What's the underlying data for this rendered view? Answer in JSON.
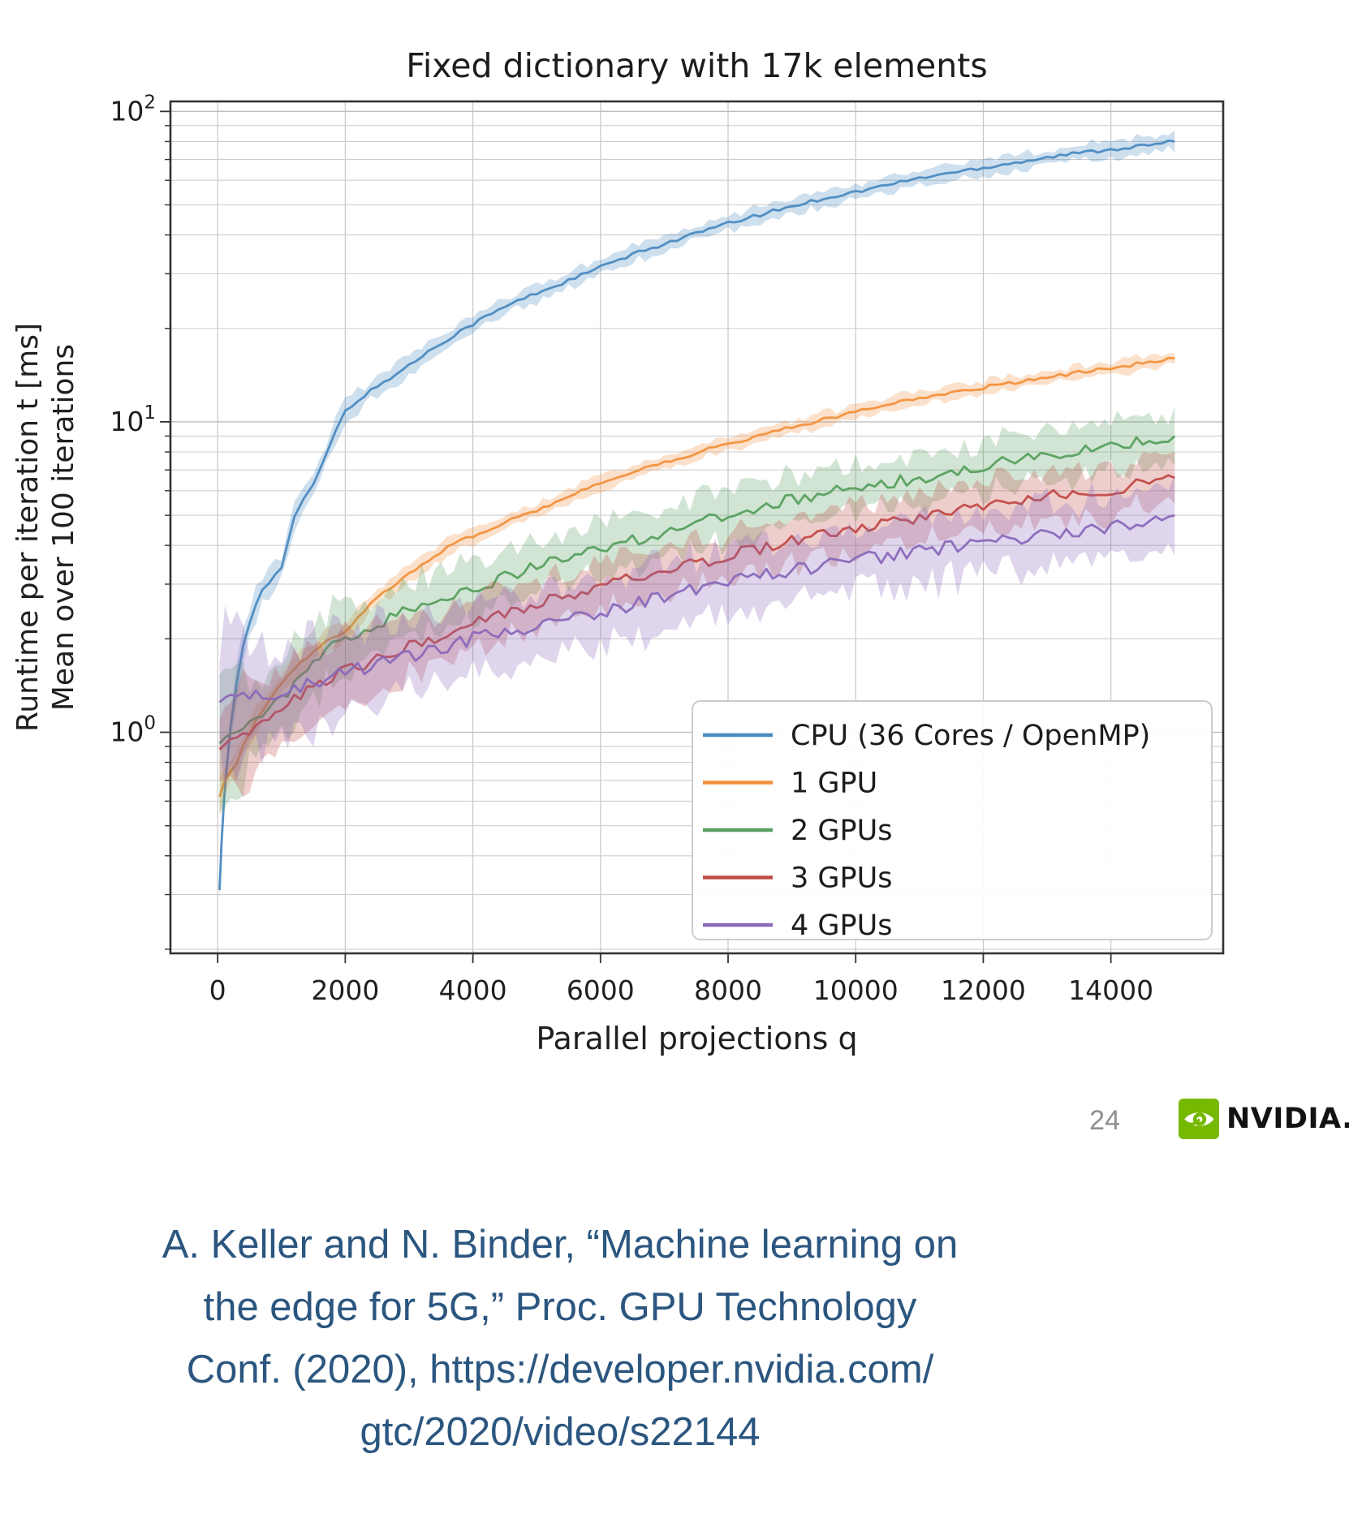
{
  "page": {
    "number": "24"
  },
  "brand": {
    "name": "NVIDIA.",
    "green": "#76b900"
  },
  "citation": {
    "color": "#2b567f",
    "lines": [
      "A. Keller and N. Binder, “Machine learning on",
      "the edge for 5G,” Proc. GPU Technology",
      "Conf. (2020), https://developer.nvidia.com/",
      "gtc/2020/video/s22144"
    ]
  },
  "chart_data": {
    "type": "line",
    "title": "Fixed dictionary with 17k elements",
    "xlabel": "Parallel projections q",
    "ylabel_line1": "Runtime per iteration t [ms]",
    "ylabel_line2": "Mean over 100 iterations",
    "y_scale": "log",
    "grid": true,
    "legend_position": "lower right",
    "xlim": [
      -740,
      15760
    ],
    "ylim": [
      0.194,
      107.7
    ],
    "x_ticks": [
      0,
      2000,
      4000,
      6000,
      8000,
      10000,
      12000,
      14000
    ],
    "y_major_tick_exponents": [
      0,
      1,
      2
    ],
    "series": [
      {
        "name": "CPU (36 Cores / OpenMP)",
        "color": "#4a8ac0",
        "band_factor": 1.06,
        "noise": 0.006,
        "points": [
          [
            30,
            0.31
          ],
          [
            60,
            0.44
          ],
          [
            100,
            0.6
          ],
          [
            150,
            0.8
          ],
          [
            200,
            1.02
          ],
          [
            300,
            1.45
          ],
          [
            400,
            1.9
          ],
          [
            500,
            2.25
          ],
          [
            600,
            2.6
          ],
          [
            700,
            2.9
          ],
          [
            800,
            3.05
          ],
          [
            900,
            3.2
          ],
          [
            1000,
            3.4
          ],
          [
            1100,
            4.1
          ],
          [
            1200,
            4.9
          ],
          [
            1350,
            5.6
          ],
          [
            1500,
            6.3
          ],
          [
            1700,
            7.8
          ],
          [
            1850,
            9.3
          ],
          [
            2000,
            10.8
          ],
          [
            2300,
            12.2
          ],
          [
            2600,
            13.4
          ],
          [
            3000,
            15.2
          ],
          [
            3400,
            17.4
          ],
          [
            3800,
            19.6
          ],
          [
            4200,
            21.8
          ],
          [
            4600,
            24.0
          ],
          [
            5000,
            26.0
          ],
          [
            5500,
            28.5
          ],
          [
            6000,
            31.5
          ],
          [
            6500,
            34.5
          ],
          [
            7000,
            37.5
          ],
          [
            7500,
            40.5
          ],
          [
            8000,
            43.5
          ],
          [
            8500,
            46.5
          ],
          [
            9000,
            49.5
          ],
          [
            9500,
            52.5
          ],
          [
            10000,
            55.0
          ],
          [
            10500,
            58.0
          ],
          [
            11000,
            61.0
          ],
          [
            11500,
            63.5
          ],
          [
            12000,
            66.0
          ],
          [
            12500,
            68.5
          ],
          [
            13000,
            71.0
          ],
          [
            13500,
            73.5
          ],
          [
            14000,
            75.5
          ],
          [
            14500,
            77.5
          ],
          [
            15000,
            80.0
          ]
        ]
      },
      {
        "name": "1 GPU",
        "color": "#f2913d",
        "band_factor": 1.05,
        "noise": 0.006,
        "points": [
          [
            30,
            0.62
          ],
          [
            100,
            0.68
          ],
          [
            200,
            0.74
          ],
          [
            300,
            0.8
          ],
          [
            400,
            0.9
          ],
          [
            500,
            1.0
          ],
          [
            700,
            1.18
          ],
          [
            900,
            1.35
          ],
          [
            1100,
            1.52
          ],
          [
            1300,
            1.68
          ],
          [
            1500,
            1.82
          ],
          [
            1700,
            1.95
          ],
          [
            2000,
            2.1
          ],
          [
            2200,
            2.35
          ],
          [
            2400,
            2.6
          ],
          [
            2700,
            2.9
          ],
          [
            3000,
            3.25
          ],
          [
            3300,
            3.6
          ],
          [
            3600,
            3.95
          ],
          [
            4000,
            4.3
          ],
          [
            4400,
            4.65
          ],
          [
            4800,
            5.0
          ],
          [
            5200,
            5.4
          ],
          [
            5600,
            5.85
          ],
          [
            6000,
            6.3
          ],
          [
            6500,
            6.9
          ],
          [
            7000,
            7.4
          ],
          [
            7500,
            7.95
          ],
          [
            8000,
            8.5
          ],
          [
            8500,
            9.05
          ],
          [
            9000,
            9.6
          ],
          [
            9500,
            10.2
          ],
          [
            10000,
            10.8
          ],
          [
            10500,
            11.35
          ],
          [
            11000,
            11.9
          ],
          [
            11500,
            12.4
          ],
          [
            12000,
            12.9
          ],
          [
            12500,
            13.4
          ],
          [
            13000,
            13.9
          ],
          [
            13500,
            14.4
          ],
          [
            14000,
            14.9
          ],
          [
            14500,
            15.45
          ],
          [
            15000,
            16.0
          ]
        ]
      },
      {
        "name": "2 GPUs",
        "color": "#57a05f",
        "band_factor": 1.2,
        "noise": 0.02,
        "points": [
          [
            30,
            0.92
          ],
          [
            200,
            1.0
          ],
          [
            400,
            1.06
          ],
          [
            600,
            1.12
          ],
          [
            800,
            1.2
          ],
          [
            1000,
            1.3
          ],
          [
            1200,
            1.42
          ],
          [
            1400,
            1.56
          ],
          [
            1600,
            1.72
          ],
          [
            1800,
            1.88
          ],
          [
            2000,
            2.02
          ],
          [
            2300,
            2.12
          ],
          [
            2600,
            2.25
          ],
          [
            3000,
            2.5
          ],
          [
            3400,
            2.68
          ],
          [
            3800,
            2.85
          ],
          [
            4200,
            3.0
          ],
          [
            4600,
            3.2
          ],
          [
            5000,
            3.4
          ],
          [
            5400,
            3.6
          ],
          [
            5800,
            3.8
          ],
          [
            6200,
            4.0
          ],
          [
            6600,
            4.2
          ],
          [
            7000,
            4.45
          ],
          [
            7400,
            4.7
          ],
          [
            7800,
            4.9
          ],
          [
            8200,
            5.1
          ],
          [
            8600,
            5.35
          ],
          [
            9000,
            5.6
          ],
          [
            9400,
            5.8
          ],
          [
            9800,
            6.0
          ],
          [
            10200,
            6.2
          ],
          [
            10600,
            6.4
          ],
          [
            11000,
            6.6
          ],
          [
            11400,
            6.8
          ],
          [
            11800,
            7.0
          ],
          [
            12200,
            7.3
          ],
          [
            12600,
            7.55
          ],
          [
            13000,
            7.8
          ],
          [
            13400,
            8.05
          ],
          [
            13800,
            8.3
          ],
          [
            14200,
            8.55
          ],
          [
            14600,
            8.8
          ],
          [
            15000,
            9.0
          ]
        ]
      },
      {
        "name": "3 GPUs",
        "color": "#c14a47",
        "band_factor": 1.19,
        "noise": 0.02,
        "points": [
          [
            30,
            0.88
          ],
          [
            200,
            0.95
          ],
          [
            400,
            1.0
          ],
          [
            600,
            1.05
          ],
          [
            800,
            1.12
          ],
          [
            1000,
            1.2
          ],
          [
            1300,
            1.33
          ],
          [
            1600,
            1.44
          ],
          [
            2000,
            1.57
          ],
          [
            2400,
            1.7
          ],
          [
            2800,
            1.82
          ],
          [
            3200,
            1.95
          ],
          [
            3600,
            2.1
          ],
          [
            4000,
            2.25
          ],
          [
            4500,
            2.42
          ],
          [
            5000,
            2.6
          ],
          [
            5500,
            2.77
          ],
          [
            6000,
            2.95
          ],
          [
            6500,
            3.12
          ],
          [
            7000,
            3.3
          ],
          [
            7500,
            3.5
          ],
          [
            8000,
            3.7
          ],
          [
            8500,
            3.9
          ],
          [
            9000,
            4.1
          ],
          [
            9500,
            4.3
          ],
          [
            10000,
            4.5
          ],
          [
            10500,
            4.7
          ],
          [
            11000,
            4.9
          ],
          [
            11500,
            5.1
          ],
          [
            12000,
            5.3
          ],
          [
            12500,
            5.5
          ],
          [
            13000,
            5.72
          ],
          [
            13500,
            5.92
          ],
          [
            14000,
            6.1
          ],
          [
            14500,
            6.3
          ],
          [
            15000,
            6.6
          ]
        ]
      },
      {
        "name": "4 GPUs",
        "color": "#8a69bb",
        "band_factor": 1.26,
        "noise": 0.022,
        "points": [
          [
            30,
            1.25
          ],
          [
            200,
            1.27
          ],
          [
            400,
            1.28
          ],
          [
            600,
            1.3
          ],
          [
            800,
            1.32
          ],
          [
            1000,
            1.35
          ],
          [
            1300,
            1.4
          ],
          [
            1600,
            1.47
          ],
          [
            2000,
            1.55
          ],
          [
            2400,
            1.63
          ],
          [
            2800,
            1.72
          ],
          [
            3200,
            1.81
          ],
          [
            3600,
            1.9
          ],
          [
            4000,
            2.0
          ],
          [
            4500,
            2.1
          ],
          [
            5000,
            2.2
          ],
          [
            5500,
            2.32
          ],
          [
            6000,
            2.45
          ],
          [
            6500,
            2.58
          ],
          [
            7000,
            2.72
          ],
          [
            7500,
            2.88
          ],
          [
            8000,
            3.02
          ],
          [
            8500,
            3.18
          ],
          [
            9000,
            3.32
          ],
          [
            9500,
            3.45
          ],
          [
            10000,
            3.58
          ],
          [
            10500,
            3.7
          ],
          [
            11000,
            3.83
          ],
          [
            11500,
            3.95
          ],
          [
            12000,
            4.08
          ],
          [
            12500,
            4.2
          ],
          [
            13000,
            4.33
          ],
          [
            13500,
            4.45
          ],
          [
            14000,
            4.58
          ],
          [
            14500,
            4.72
          ],
          [
            15000,
            5.0
          ]
        ]
      }
    ]
  }
}
